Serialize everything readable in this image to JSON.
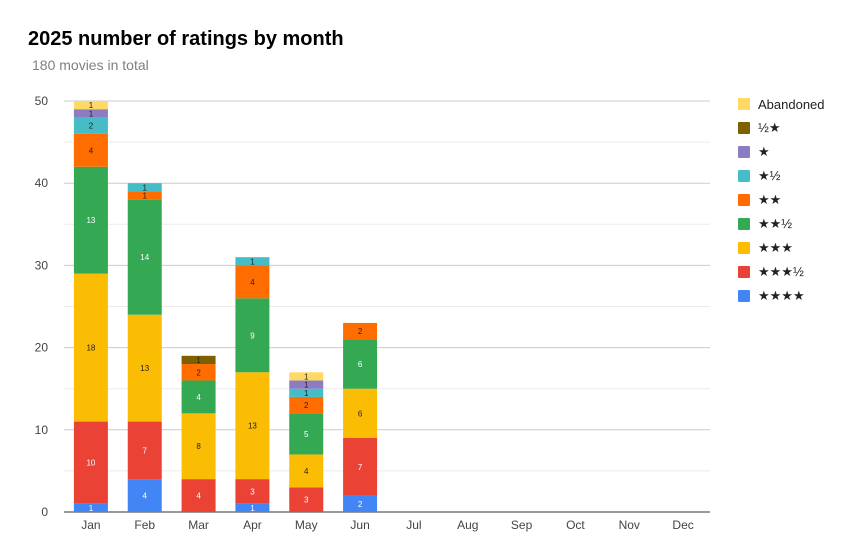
{
  "chart_data": {
    "type": "bar",
    "stacked": true,
    "title": "2025 number of ratings by month",
    "subtitle": "180 movies in total",
    "categories": [
      "Jan",
      "Feb",
      "Mar",
      "Apr",
      "May",
      "Jun",
      "Jul",
      "Aug",
      "Sep",
      "Oct",
      "Nov",
      "Dec"
    ],
    "ylim": [
      0,
      50
    ],
    "yticks": [
      0,
      10,
      20,
      30,
      40,
      50
    ],
    "grid": true,
    "legend_position": "right",
    "series": [
      {
        "name": "★★★★",
        "color": "#4285f4",
        "values": [
          1,
          4,
          0,
          1,
          0,
          2,
          0,
          0,
          0,
          0,
          0,
          0
        ]
      },
      {
        "name": "★★★½",
        "color": "#ea4335",
        "values": [
          10,
          7,
          4,
          3,
          3,
          7,
          0,
          0,
          0,
          0,
          0,
          0
        ]
      },
      {
        "name": "★★★",
        "color": "#fbbc04",
        "values": [
          18,
          13,
          8,
          13,
          4,
          6,
          0,
          0,
          0,
          0,
          0,
          0
        ]
      },
      {
        "name": "★★½",
        "color": "#34a853",
        "values": [
          13,
          14,
          4,
          9,
          5,
          6,
          0,
          0,
          0,
          0,
          0,
          0
        ]
      },
      {
        "name": "★★",
        "color": "#ff6d01",
        "values": [
          4,
          1,
          2,
          4,
          2,
          2,
          0,
          0,
          0,
          0,
          0,
          0
        ]
      },
      {
        "name": "★½",
        "color": "#46bdc6",
        "values": [
          2,
          1,
          0,
          1,
          1,
          0,
          0,
          0,
          0,
          0,
          0,
          0
        ]
      },
      {
        "name": "★",
        "color": "#8e7cc3",
        "values": [
          1,
          0,
          0,
          0,
          1,
          0,
          0,
          0,
          0,
          0,
          0,
          0
        ]
      },
      {
        "name": "½★",
        "color": "#7f6000",
        "values": [
          0,
          0,
          1,
          0,
          0,
          0,
          0,
          0,
          0,
          0,
          0,
          0
        ]
      },
      {
        "name": "Abandoned",
        "color": "#ffd966",
        "values": [
          1,
          0,
          0,
          0,
          1,
          0,
          0,
          0,
          0,
          0,
          0,
          0
        ]
      }
    ]
  }
}
